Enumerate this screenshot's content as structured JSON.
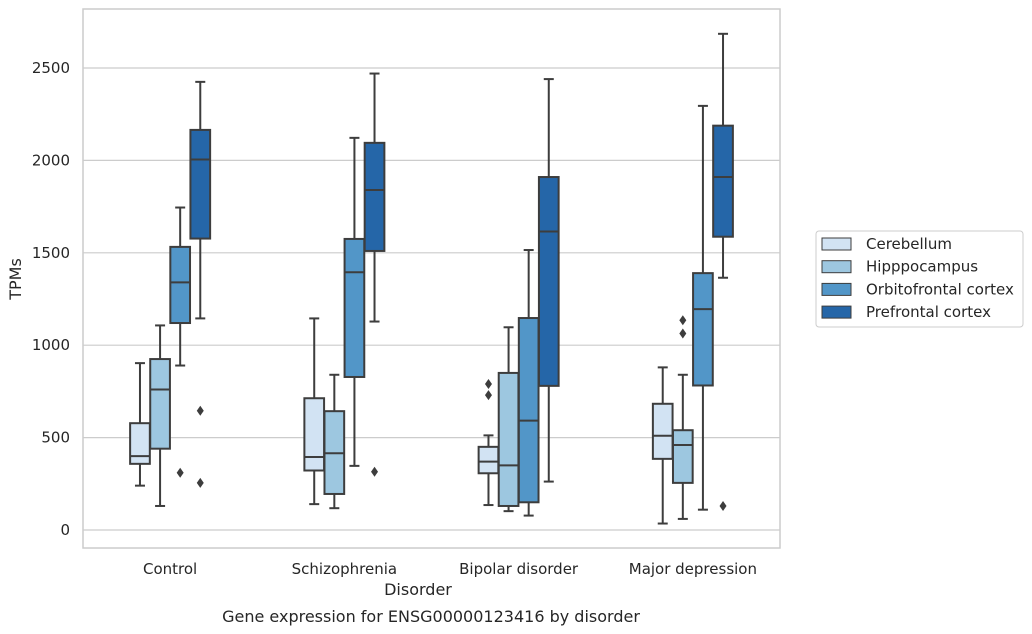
{
  "chart_data": {
    "type": "box",
    "title": "",
    "caption": "Gene expression for ENSG00000123416 by disorder",
    "xlabel": "Disorder",
    "ylabel": "TPMs",
    "ylim": [
      -95,
      2820
    ],
    "yticks": [
      0,
      500,
      1000,
      1500,
      2000,
      2500
    ],
    "grid": "horizontal",
    "legend_position": "right",
    "categories": [
      "Control",
      "Schizophrenia",
      "Bipolar disorder",
      "Major depression"
    ],
    "series": [
      {
        "name": "Cerebellum",
        "color": "#d2e3f3",
        "boxes": [
          {
            "whisker_low": 240,
            "q1": 358,
            "median": 400,
            "q3": 578,
            "whisker_high": 903,
            "outliers": []
          },
          {
            "whisker_low": 140,
            "q1": 322,
            "median": 395,
            "q3": 713,
            "whisker_high": 1145,
            "outliers": []
          },
          {
            "whisker_low": 135,
            "q1": 307,
            "median": 370,
            "q3": 450,
            "whisker_high": 512,
            "outliers": [
              730,
              790
            ]
          },
          {
            "whisker_low": 35,
            "q1": 385,
            "median": 510,
            "q3": 683,
            "whisker_high": 880,
            "outliers": []
          }
        ]
      },
      {
        "name": "Hipppocampus",
        "color": "#9dc7e0",
        "boxes": [
          {
            "whisker_low": 130,
            "q1": 440,
            "median": 760,
            "q3": 925,
            "whisker_high": 1107,
            "outliers": []
          },
          {
            "whisker_low": 118,
            "q1": 195,
            "median": 415,
            "q3": 643,
            "whisker_high": 840,
            "outliers": []
          },
          {
            "whisker_low": 102,
            "q1": 130,
            "median": 350,
            "q3": 850,
            "whisker_high": 1097,
            "outliers": []
          },
          {
            "whisker_low": 60,
            "q1": 255,
            "median": 460,
            "q3": 540,
            "whisker_high": 840,
            "outliers": [
              1063,
              1135
            ]
          }
        ]
      },
      {
        "name": "Orbitofrontal cortex",
        "color": "#5296c8",
        "boxes": [
          {
            "whisker_low": 890,
            "q1": 1120,
            "median": 1340,
            "q3": 1532,
            "whisker_high": 1745,
            "outliers": [
              310
            ]
          },
          {
            "whisker_low": 347,
            "q1": 828,
            "median": 1395,
            "q3": 1575,
            "whisker_high": 2122,
            "outliers": []
          },
          {
            "whisker_low": 78,
            "q1": 150,
            "median": 592,
            "q3": 1147,
            "whisker_high": 1515,
            "outliers": []
          },
          {
            "whisker_low": 110,
            "q1": 782,
            "median": 1195,
            "q3": 1390,
            "whisker_high": 2295,
            "outliers": []
          }
        ]
      },
      {
        "name": "Prefrontal cortex",
        "color": "#2566a8",
        "boxes": [
          {
            "whisker_low": 1145,
            "q1": 1577,
            "median": 2005,
            "q3": 2165,
            "whisker_high": 2425,
            "outliers": [
              645,
              255
            ]
          },
          {
            "whisker_low": 1128,
            "q1": 1510,
            "median": 1840,
            "q3": 2095,
            "whisker_high": 2470,
            "outliers": [
              315
            ]
          },
          {
            "whisker_low": 262,
            "q1": 780,
            "median": 1615,
            "q3": 1910,
            "whisker_high": 2440,
            "outliers": []
          },
          {
            "whisker_low": 1365,
            "q1": 1587,
            "median": 1910,
            "q3": 2188,
            "whisker_high": 2685,
            "outliers": [
              130
            ]
          }
        ]
      }
    ]
  }
}
